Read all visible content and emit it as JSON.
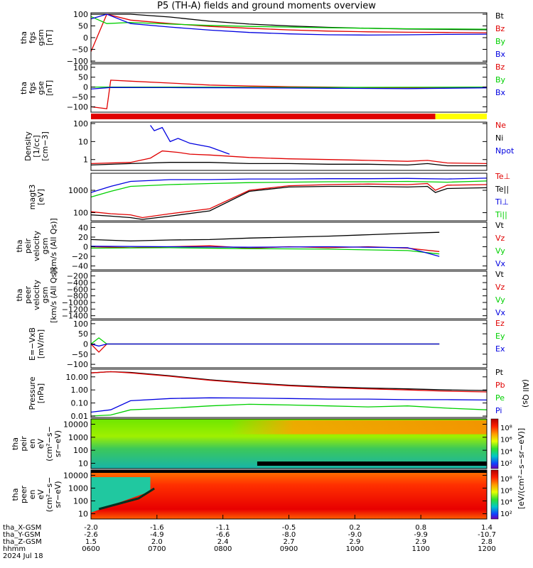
{
  "title": "P5 (TH-A) fields and ground moments overview",
  "colors": {
    "black": "#000000",
    "red": "#e00000",
    "green": "#00d000",
    "blue": "#0000e0",
    "yellow": "#ffff00"
  },
  "chart_data": {
    "type": "line",
    "x_axis": {
      "ticks": [
        "0600",
        "0700",
        "0800",
        "0900",
        "1000",
        "1100",
        "1200"
      ],
      "rows": [
        {
          "label": "tha_X-GSM",
          "values": [
            "-2.0",
            "-1.6",
            "-1.1",
            "-0.5",
            "0.2",
            "0.8",
            "1.4"
          ]
        },
        {
          "label": "tha_Y-GSM",
          "values": [
            "-2.6",
            "-4.9",
            "-6.6",
            "-8.0",
            "-9.0",
            "-9.9",
            "-10.7"
          ]
        },
        {
          "label": "tha_Z-GSM",
          "values": [
            "1.5",
            "2.0",
            "2.4",
            "2.7",
            "2.9",
            "2.9",
            "2.8"
          ]
        },
        {
          "label": "hhmm",
          "values": [
            "0600",
            "0700",
            "0800",
            "0900",
            "1000",
            "1100",
            "1200"
          ]
        }
      ],
      "date": "2024 Jul 18"
    },
    "panels": [
      {
        "id": "fgs-gsm",
        "ylabel": [
          "tha",
          "fgs",
          "gsm",
          "[nT]"
        ],
        "yticks": [
          "100",
          "50",
          "0",
          "−50",
          "−100"
        ],
        "ylim": [
          -100,
          100
        ],
        "legend": [
          "Bt",
          "Bz",
          "By",
          "Bx"
        ],
        "series": [
          {
            "name": "Bt",
            "color": "black",
            "t": [
              0.0,
              0.05,
              0.1,
              0.2,
              0.3,
              0.4,
              0.5,
              0.6,
              0.7,
              0.8,
              0.9,
              1.0
            ],
            "y": [
              100,
              100,
              100,
              88,
              70,
              58,
              50,
              44,
              40,
              37,
              35,
              34
            ]
          },
          {
            "name": "Bz",
            "color": "red",
            "t": [
              0.0,
              0.04,
              0.1,
              0.2,
              0.3,
              0.4,
              0.5,
              0.6,
              0.7,
              0.8,
              0.9,
              1.0
            ],
            "y": [
              -60,
              100,
              75,
              60,
              48,
              40,
              33,
              28,
              25,
              23,
              22,
              21
            ]
          },
          {
            "name": "By",
            "color": "green",
            "t": [
              0.0,
              0.04,
              0.1,
              0.2,
              0.3,
              0.4,
              0.5,
              0.6,
              0.7,
              0.8,
              0.9,
              1.0
            ],
            "y": [
              90,
              60,
              65,
              58,
              52,
              48,
              45,
              42,
              40,
              38,
              37,
              36
            ]
          },
          {
            "name": "Bx",
            "color": "blue",
            "t": [
              0.0,
              0.04,
              0.1,
              0.2,
              0.3,
              0.4,
              0.5,
              0.6,
              0.7,
              0.8,
              0.9,
              1.0
            ],
            "y": [
              80,
              100,
              60,
              45,
              32,
              22,
              16,
              12,
              11,
              12,
              14,
              15
            ]
          }
        ]
      },
      {
        "id": "fgs-gse",
        "ylabel": [
          "tha",
          "fgs",
          "gse",
          "[nT]"
        ],
        "yticks": [
          "100",
          "50",
          "0",
          "−50",
          "−100"
        ],
        "ylim": [
          -120,
          110
        ],
        "legend": [
          "Bz",
          "By",
          "Bx"
        ],
        "series": [
          {
            "name": "Bz",
            "color": "red",
            "t": [
              0.0,
              0.04,
              0.05,
              0.1,
              0.2,
              0.3,
              0.4,
              0.5,
              0.6,
              0.7,
              0.8,
              0.9,
              1.0
            ],
            "y": [
              -100,
              -110,
              35,
              30,
              20,
              10,
              5,
              2,
              0,
              -3,
              -3,
              -2,
              0
            ]
          },
          {
            "name": "By",
            "color": "green",
            "t": [
              0.0,
              0.05,
              0.2,
              0.4,
              0.6,
              0.8,
              1.0
            ],
            "y": [
              0,
              0,
              0,
              -1,
              -2,
              -1,
              0
            ]
          },
          {
            "name": "Bx",
            "color": "blue",
            "t": [
              0.0,
              0.05,
              0.2,
              0.4,
              0.6,
              0.8,
              1.0
            ],
            "y": [
              -10,
              -2,
              -3,
              -4,
              -6,
              -8,
              -4
            ]
          }
        ]
      },
      {
        "id": "density",
        "ylabel": [
          "Density",
          "[1/cc]",
          "[cm−3]"
        ],
        "yticks": [
          "100",
          "10",
          "1"
        ],
        "ylim": [
          0.3,
          100
        ],
        "log": true,
        "legend": [
          "Ne",
          "Ni",
          "Npot"
        ],
        "series": [
          {
            "name": "Ne",
            "color": "red",
            "t": [
              0.0,
              0.1,
              0.15,
              0.18,
              0.22,
              0.25,
              0.3,
              0.4,
              0.5,
              0.6,
              0.7,
              0.8,
              0.85,
              0.9,
              1.0
            ],
            "y": [
              0.6,
              0.7,
              1.2,
              3.0,
              2.5,
              2.0,
              1.8,
              1.3,
              1.1,
              1.0,
              0.9,
              0.8,
              0.9,
              0.65,
              0.6
            ]
          },
          {
            "name": "Ni",
            "color": "black",
            "t": [
              0.0,
              0.1,
              0.2,
              0.3,
              0.4,
              0.5,
              0.6,
              0.7,
              0.8,
              0.85,
              0.9,
              1.0
            ],
            "y": [
              0.5,
              0.6,
              0.7,
              0.7,
              0.6,
              0.6,
              0.55,
              0.55,
              0.5,
              0.6,
              0.45,
              0.45
            ]
          },
          {
            "name": "Npot",
            "color": "blue",
            "t": [
              0.15,
              0.16,
              0.18,
              0.2,
              0.22,
              0.25,
              0.3,
              0.35
            ],
            "y": [
              80,
              40,
              60,
              10,
              15,
              8,
              5,
              2
            ]
          }
        ]
      },
      {
        "id": "temperature",
        "ylabel": [
          "magt3",
          "[eV]"
        ],
        "yticks": [
          "1000",
          "100"
        ],
        "ylim": [
          50,
          5000
        ],
        "log": true,
        "legend": [
          "Te⊥",
          "Te||",
          "Ti⊥",
          "Ti||"
        ],
        "series": [
          {
            "name": "Te⊥",
            "color": "red",
            "t": [
              0.0,
              0.05,
              0.1,
              0.13,
              0.2,
              0.3,
              0.4,
              0.5,
              0.6,
              0.7,
              0.8,
              0.85,
              0.87,
              0.9,
              1.0
            ],
            "y": [
              110,
              90,
              80,
              60,
              90,
              150,
              1000,
              1600,
              1800,
              1900,
              1800,
              2000,
              1000,
              1700,
              1800
            ]
          },
          {
            "name": "Te||",
            "color": "black",
            "t": [
              0.0,
              0.05,
              0.1,
              0.13,
              0.2,
              0.3,
              0.4,
              0.5,
              0.6,
              0.7,
              0.8,
              0.85,
              0.87,
              0.9,
              1.0
            ],
            "y": [
              80,
              70,
              60,
              50,
              70,
              120,
              900,
              1400,
              1500,
              1500,
              1400,
              1500,
              800,
              1200,
              1300
            ]
          },
          {
            "name": "Ti⊥",
            "color": "blue",
            "t": [
              0.0,
              0.05,
              0.1,
              0.2,
              0.3,
              0.4,
              0.5,
              0.6,
              0.7,
              0.8,
              0.9,
              1.0
            ],
            "y": [
              800,
              1500,
              2500,
              3000,
              3000,
              3200,
              3200,
              3300,
              3300,
              3400,
              3200,
              3500
            ]
          },
          {
            "name": "Ti||",
            "color": "green",
            "t": [
              0.0,
              0.05,
              0.1,
              0.2,
              0.3,
              0.4,
              0.5,
              0.6,
              0.7,
              0.8,
              0.9,
              1.0
            ],
            "y": [
              500,
              900,
              1500,
              1800,
              2000,
              2200,
              2300,
              2400,
              2400,
              2500,
              2300,
              2600
            ]
          }
        ]
      },
      {
        "id": "peir-velocity",
        "ylabel": [
          "tha",
          "peir",
          "velocity",
          "gsm",
          "[km/s (All Qs)]"
        ],
        "yticks": [
          "40",
          "20",
          "0",
          "−20",
          "−40"
        ],
        "ylim": [
          -45,
          48
        ],
        "legend": [
          "Vt",
          "Vz",
          "Vy",
          "Vx"
        ],
        "series": [
          {
            "name": "Vt",
            "color": "black",
            "t": [
              0.0,
              0.1,
              0.2,
              0.3,
              0.4,
              0.5,
              0.6,
              0.7,
              0.8,
              0.88
            ],
            "y": [
              15,
              12,
              14,
              15,
              18,
              20,
              22,
              25,
              28,
              30
            ]
          },
          {
            "name": "Vz",
            "color": "red",
            "t": [
              0.0,
              0.1,
              0.2,
              0.3,
              0.4,
              0.5,
              0.6,
              0.7,
              0.8,
              0.88
            ],
            "y": [
              0,
              -2,
              0,
              2,
              -3,
              0,
              -2,
              0,
              -3,
              -10
            ]
          },
          {
            "name": "Vy",
            "color": "green",
            "t": [
              0.0,
              0.2,
              0.4,
              0.6,
              0.8,
              0.88
            ],
            "y": [
              -3,
              -2,
              -4,
              -5,
              -8,
              -15
            ]
          },
          {
            "name": "Vx",
            "color": "blue",
            "t": [
              0.0,
              0.2,
              0.4,
              0.6,
              0.8,
              0.88
            ],
            "y": [
              1,
              0,
              -1,
              0,
              -2,
              -20
            ]
          }
        ]
      },
      {
        "id": "peer-velocity",
        "ylabel": [
          "tha",
          "peer",
          "velocity",
          "gsm",
          "[km/s (All Qs)]"
        ],
        "yticks": [
          "−200",
          "−400",
          "−600",
          "−800",
          "−1000",
          "−1200",
          "−1400"
        ],
        "ylim": [
          -1450,
          -100
        ],
        "legend": [
          "Vt",
          "Vz",
          "Vy",
          "Vx"
        ],
        "series": []
      },
      {
        "id": "efield",
        "ylabel": [
          "E=−VxB",
          "[mV/m]"
        ],
        "yticks": [
          "100",
          "50",
          "0",
          "−50",
          "−100"
        ],
        "ylim": [
          -110,
          110
        ],
        "legend": [
          "Ez",
          "Ey",
          "Ex"
        ],
        "series": [
          {
            "name": "Ez",
            "color": "red",
            "t": [
              0.0,
              0.02,
              0.04,
              0.2,
              0.4,
              0.6,
              0.8,
              0.88
            ],
            "y": [
              0,
              -40,
              0,
              0,
              0,
              0,
              0,
              0
            ]
          },
          {
            "name": "Ey",
            "color": "green",
            "t": [
              0.0,
              0.02,
              0.04,
              0.88
            ],
            "y": [
              0,
              30,
              0,
              0
            ]
          },
          {
            "name": "Ex",
            "color": "blue",
            "t": [
              0.0,
              0.02,
              0.04,
              0.88
            ],
            "y": [
              0,
              -10,
              0,
              0
            ]
          }
        ]
      },
      {
        "id": "pressure",
        "ylabel": [
          "Pressure",
          "[nPa]"
        ],
        "yticks": [
          "10.00",
          "1.00",
          "0.10",
          "0.01"
        ],
        "ylim": [
          0.01,
          30
        ],
        "log": true,
        "legend": [
          "Pt",
          "Pb",
          "Pe",
          "Pi"
        ],
        "legend_side": "(All Qs)",
        "series": [
          {
            "name": "Pt",
            "color": "black",
            "t": [
              0.0,
              0.05,
              0.1,
              0.2,
              0.3,
              0.4,
              0.5,
              0.6,
              0.7,
              0.8,
              0.9,
              1.0
            ],
            "y": [
              20,
              25,
              22,
              12,
              6,
              3.5,
              2.3,
              1.7,
              1.4,
              1.2,
              1.0,
              0.9
            ]
          },
          {
            "name": "Pb",
            "color": "red",
            "t": [
              0.0,
              0.05,
              0.1,
              0.2,
              0.3,
              0.4,
              0.5,
              0.6,
              0.7,
              0.8,
              0.9,
              1.0
            ],
            "y": [
              20,
              25,
              20,
              11,
              5.5,
              3.2,
              2.1,
              1.5,
              1.2,
              1.0,
              0.8,
              0.7
            ]
          },
          {
            "name": "Pe",
            "color": "green",
            "t": [
              0.0,
              0.05,
              0.1,
              0.2,
              0.3,
              0.4,
              0.5,
              0.6,
              0.7,
              0.8,
              0.9,
              1.0
            ],
            "y": [
              0.01,
              0.012,
              0.03,
              0.04,
              0.06,
              0.08,
              0.07,
              0.06,
              0.05,
              0.06,
              0.04,
              0.03
            ]
          },
          {
            "name": "Pi",
            "color": "blue",
            "t": [
              0.0,
              0.05,
              0.1,
              0.2,
              0.3,
              0.4,
              0.5,
              0.6,
              0.7,
              0.8,
              0.9,
              1.0
            ],
            "y": [
              0.02,
              0.03,
              0.15,
              0.22,
              0.25,
              0.24,
              0.22,
              0.2,
              0.2,
              0.18,
              0.18,
              0.17
            ]
          }
        ]
      },
      {
        "id": "peir-eflux",
        "type": "heatmap",
        "ylabel": [
          "tha",
          "peir",
          "en",
          "eV",
          "(cm²−s−",
          "sr−eV)"
        ],
        "yticks": [
          "10000",
          "1000",
          "100",
          "10"
        ],
        "ylim": [
          5,
          20000
        ],
        "log": true
      },
      {
        "id": "peer-eflux",
        "type": "heatmap",
        "ylabel": [
          "tha",
          "peer",
          "en",
          "eV",
          "(cm²−s−",
          "sr−eV)"
        ],
        "yticks": [
          "10000",
          "1000",
          "100",
          "10"
        ],
        "ylim": [
          5,
          20000
        ],
        "log": true
      }
    ],
    "colorbars": [
      {
        "label": "[eV/(cm²−s−sr−eV)]",
        "ticks": [
          "10⁸",
          "10⁶",
          "10⁴",
          "10²"
        ]
      },
      {
        "label": "[eV/(cm²−s−sr−eV)]",
        "ticks": [
          "10⁸",
          "10⁶",
          "10⁴",
          "10²"
        ]
      }
    ],
    "colorbar_side_label": "[eV/(cm²−s−sr−eV)]",
    "mode_bar": {
      "segments": [
        {
          "start": 0,
          "end": 0.87,
          "color": "red"
        },
        {
          "start": 0.87,
          "end": 1.0,
          "color": "yellow"
        }
      ]
    },
    "grid": false
  }
}
